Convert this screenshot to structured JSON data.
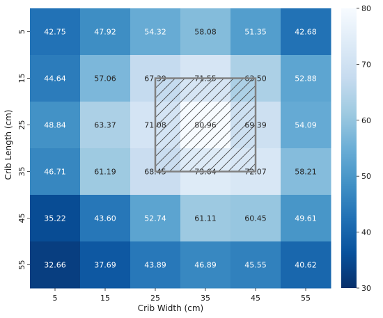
{
  "chart_data": {
    "type": "heatmap",
    "title": "",
    "xlabel": "Crib Width (cm)",
    "ylabel": "Crib Length (cm)",
    "x_ticks": [
      "5",
      "15",
      "25",
      "35",
      "45",
      "55"
    ],
    "y_ticks": [
      "5",
      "15",
      "25",
      "35",
      "45",
      "55"
    ],
    "values": [
      [
        42.75,
        47.92,
        54.32,
        58.08,
        51.35,
        42.68
      ],
      [
        44.64,
        57.06,
        67.39,
        71.55,
        63.5,
        52.88
      ],
      [
        48.84,
        63.37,
        71.08,
        80.96,
        69.39,
        54.09
      ],
      [
        46.71,
        61.19,
        68.45,
        73.64,
        72.07,
        58.21
      ],
      [
        35.22,
        43.6,
        52.74,
        61.11,
        60.45,
        49.61
      ],
      [
        32.66,
        37.69,
        43.89,
        46.89,
        45.55,
        40.62
      ]
    ],
    "value_format": "2 decimals",
    "colormap": "Blues (dark = low, light = high)",
    "color_range": [
      30,
      80
    ],
    "colorbar_ticks": [
      "30",
      "40",
      "50",
      "60",
      "70",
      "80"
    ],
    "highlight": {
      "rows": [
        "15",
        "35"
      ],
      "cols": [
        "25",
        "45"
      ],
      "style": "gray outlined box with diagonal hatching",
      "color": "#808080"
    }
  }
}
